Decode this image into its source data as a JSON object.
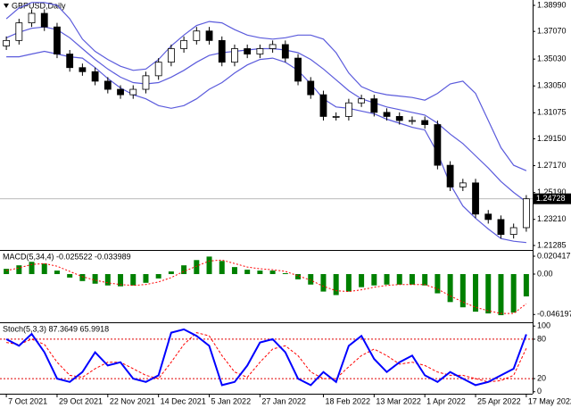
{
  "chart_data": [
    {
      "type": "candlestick",
      "title": "GBPUSD,Daily",
      "open": [
        1.36,
        1.364,
        1.377,
        1.384,
        1.374,
        1.354,
        1.344,
        1.341,
        1.334,
        1.328,
        1.324,
        1.328,
        1.338,
        1.348,
        1.358,
        1.364,
        1.371,
        1.364,
        1.348,
        1.358,
        1.354,
        1.358,
        1.361,
        1.351,
        1.334,
        1.324,
        1.308,
        1.308,
        1.318,
        1.321,
        1.311,
        1.308,
        1.305,
        1.305,
        1.302,
        1.272,
        1.256,
        1.259,
        1.236,
        1.232,
        1.221,
        1.226
      ],
      "high": [
        1.367,
        1.38,
        1.387,
        1.387,
        1.377,
        1.357,
        1.347,
        1.344,
        1.337,
        1.331,
        1.331,
        1.341,
        1.351,
        1.361,
        1.367,
        1.374,
        1.374,
        1.367,
        1.361,
        1.361,
        1.361,
        1.364,
        1.364,
        1.354,
        1.337,
        1.327,
        1.311,
        1.321,
        1.324,
        1.324,
        1.314,
        1.311,
        1.308,
        1.308,
        1.305,
        1.275,
        1.262,
        1.262,
        1.239,
        1.235,
        1.229,
        1.25
      ],
      "low": [
        1.357,
        1.361,
        1.374,
        1.371,
        1.351,
        1.341,
        1.338,
        1.331,
        1.325,
        1.321,
        1.321,
        1.325,
        1.335,
        1.345,
        1.355,
        1.361,
        1.361,
        1.345,
        1.345,
        1.351,
        1.351,
        1.355,
        1.348,
        1.331,
        1.321,
        1.305,
        1.305,
        1.305,
        1.315,
        1.308,
        1.305,
        1.302,
        1.302,
        1.299,
        1.269,
        1.253,
        1.253,
        1.233,
        1.229,
        1.218,
        1.218,
        1.223
      ],
      "close": [
        1.364,
        1.377,
        1.384,
        1.374,
        1.354,
        1.344,
        1.341,
        1.334,
        1.328,
        1.324,
        1.328,
        1.338,
        1.348,
        1.358,
        1.364,
        1.371,
        1.364,
        1.348,
        1.358,
        1.354,
        1.358,
        1.361,
        1.351,
        1.334,
        1.324,
        1.308,
        1.308,
        1.318,
        1.321,
        1.311,
        1.308,
        1.305,
        1.305,
        1.302,
        1.272,
        1.256,
        1.259,
        1.236,
        1.232,
        1.221,
        1.226,
        1.24728
      ],
      "bands": {
        "color": "#5b5bdc",
        "upper": [
          1.38,
          1.388,
          1.392,
          1.392,
          1.39,
          1.38,
          1.365,
          1.356,
          1.35,
          1.345,
          1.342,
          1.343,
          1.35,
          1.36,
          1.368,
          1.375,
          1.378,
          1.377,
          1.372,
          1.368,
          1.366,
          1.365,
          1.366,
          1.368,
          1.368,
          1.365,
          1.355,
          1.34,
          1.33,
          1.326,
          1.324,
          1.323,
          1.322,
          1.32,
          1.325,
          1.332,
          1.334,
          1.325,
          1.305,
          1.285,
          1.272,
          1.268
        ],
        "middle": [
          1.366,
          1.37,
          1.373,
          1.374,
          1.372,
          1.366,
          1.358,
          1.35,
          1.343,
          1.337,
          1.333,
          1.332,
          1.333,
          1.337,
          1.342,
          1.348,
          1.353,
          1.355,
          1.356,
          1.357,
          1.358,
          1.358,
          1.357,
          1.355,
          1.35,
          1.343,
          1.335,
          1.327,
          1.321,
          1.318,
          1.315,
          1.313,
          1.311,
          1.309,
          1.303,
          1.295,
          1.288,
          1.279,
          1.27,
          1.26,
          1.252,
          1.245
        ],
        "lower": [
          1.352,
          1.352,
          1.354,
          1.356,
          1.354,
          1.352,
          1.351,
          1.344,
          1.336,
          1.329,
          1.324,
          1.321,
          1.316,
          1.314,
          1.316,
          1.321,
          1.328,
          1.333,
          1.34,
          1.346,
          1.35,
          1.351,
          1.348,
          1.342,
          1.332,
          1.321,
          1.315,
          1.314,
          1.312,
          1.31,
          1.306,
          1.303,
          1.3,
          1.298,
          1.281,
          1.258,
          1.242,
          1.233,
          1.225,
          1.218,
          1.216,
          1.215
        ]
      },
      "current_price": 1.24728,
      "ylim": [
        1.2102,
        1.3932
      ],
      "yticks": [
        {
          "value": 1.3899,
          "label": "1.38990"
        },
        {
          "value": 1.3707,
          "label": "1.37070"
        },
        {
          "value": 1.3503,
          "label": "1.35030"
        },
        {
          "value": 1.3305,
          "label": "1.33050"
        },
        1.31075,
        {
          "value": 1.2915,
          "label": "1.29150"
        },
        {
          "value": 1.2717,
          "label": "1.27170"
        },
        {
          "value": 1.2519,
          "label": "1.25190"
        },
        {
          "value": 1.2321,
          "label": "1.23210"
        },
        1.21285
      ],
      "xticks": [
        {
          "value": 0,
          "label": "7 Oct 2021"
        },
        {
          "value": 4,
          "label": "29 Oct 2021"
        },
        {
          "value": 8,
          "label": "22 Nov 2021"
        },
        {
          "value": 12,
          "label": "14 Dec 2021"
        },
        {
          "value": 16,
          "label": "5 Jan 2022"
        },
        {
          "value": 20,
          "label": "27 Jan 2022"
        },
        {
          "value": 25,
          "label": "18 Feb 2022"
        },
        {
          "value": 29,
          "label": "13 Mar 2022"
        },
        {
          "value": 33,
          "label": "1 Apr 2022"
        },
        {
          "value": 37,
          "label": "25 Apr 2022"
        },
        {
          "value": 41,
          "label": "17 May 2022"
        }
      ]
    },
    {
      "type": "macd",
      "title": "MACD(5,34,4) -0.025522 -0.033989",
      "histogram": [
        0.006,
        0.01,
        0.014,
        0.012,
        0.004,
        -0.004,
        -0.008,
        -0.011,
        -0.013,
        -0.014,
        -0.013,
        -0.01,
        -0.005,
        0.003,
        0.01,
        0.016,
        0.02,
        0.015,
        0.008,
        0.005,
        0.004,
        0.004,
        0.001,
        -0.006,
        -0.012,
        -0.02,
        -0.024,
        -0.02,
        -0.015,
        -0.013,
        -0.012,
        -0.012,
        -0.012,
        -0.013,
        -0.022,
        -0.032,
        -0.038,
        -0.043,
        -0.045,
        -0.047,
        -0.044,
        -0.025522
      ],
      "signal": [
        0.004,
        0.007,
        0.011,
        0.012,
        0.009,
        0.003,
        -0.003,
        -0.007,
        -0.01,
        -0.012,
        -0.013,
        -0.012,
        -0.009,
        -0.004,
        0.003,
        0.009,
        0.015,
        0.016,
        0.012,
        0.008,
        0.006,
        0.005,
        0.003,
        -0.002,
        -0.007,
        -0.014,
        -0.019,
        -0.02,
        -0.018,
        -0.015,
        -0.013,
        -0.012,
        -0.012,
        -0.012,
        -0.017,
        -0.025,
        -0.032,
        -0.038,
        -0.042,
        -0.045,
        -0.045,
        -0.033989
      ],
      "histogram_color": "#008000",
      "signal_color": "#ff0000",
      "ylim": [
        -0.0541,
        0.0255
      ],
      "yticks": [
        0.020417,
        {
          "value": 0,
          "label": "0.00"
        },
        -0.046197
      ]
    },
    {
      "type": "stochastic",
      "title": "Stoch(5,3,3) 87.3649 65.9918",
      "main": [
        80,
        70,
        88,
        60,
        20,
        15,
        30,
        60,
        40,
        45,
        20,
        15,
        25,
        90,
        95,
        85,
        70,
        10,
        15,
        40,
        75,
        80,
        60,
        20,
        10,
        30,
        15,
        70,
        85,
        50,
        30,
        45,
        55,
        25,
        15,
        30,
        20,
        10,
        15,
        25,
        35,
        87.3649
      ],
      "signal": [
        75,
        72,
        80,
        72,
        45,
        25,
        22,
        35,
        45,
        45,
        35,
        25,
        20,
        45,
        72,
        90,
        85,
        55,
        30,
        22,
        45,
        65,
        70,
        55,
        30,
        20,
        20,
        38,
        55,
        65,
        55,
        42,
        45,
        40,
        30,
        25,
        25,
        20,
        15,
        17,
        25,
        65.9918
      ],
      "main_color": "#0000ff",
      "signal_color": "#ff0000",
      "levels": [
        80,
        20
      ],
      "ylim": [
        -3,
        103
      ],
      "yticks": [
        100,
        80,
        20,
        0
      ]
    }
  ]
}
